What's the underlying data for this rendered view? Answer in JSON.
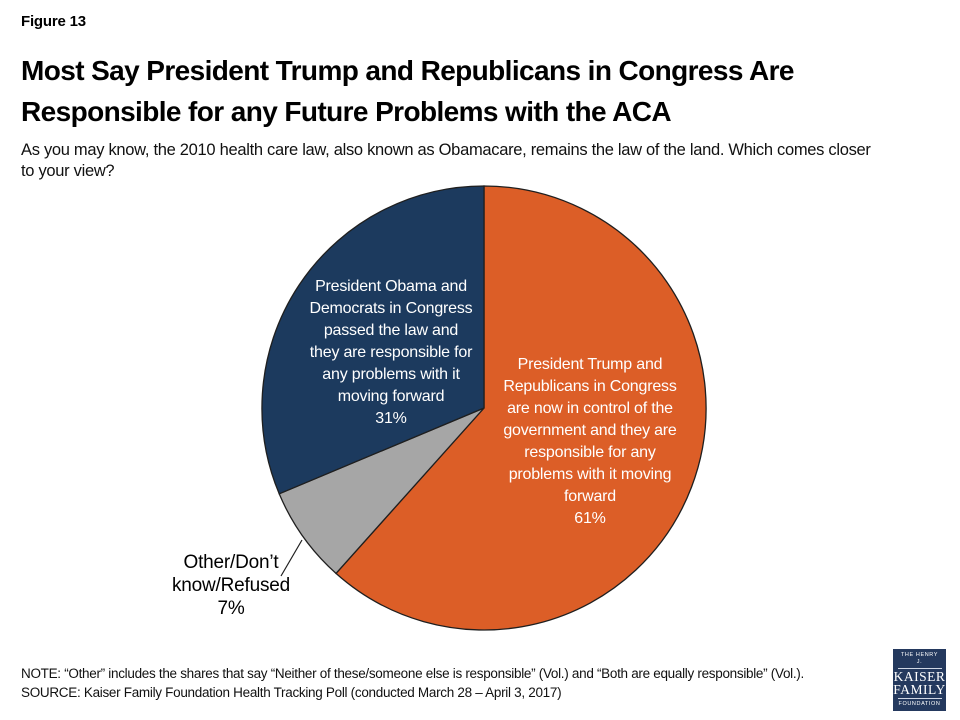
{
  "figure_label": "Figure 13",
  "title_lines": [
    "Most Say President Trump and Republicans in Congress Are",
    "Responsible for any Future Problems with the ACA"
  ],
  "subtitle_lines": [
    "As you may know, the 2010 health care law, also known as Obamacare, remains the law of the land. Which comes closer",
    "to your view?"
  ],
  "chart_data": {
    "type": "pie",
    "title": "Most Say President Trump and Republicans in Congress Are Responsible for any Future Problems with the ACA",
    "start_angle_deg": 0,
    "direction": "clockwise",
    "legend": "none",
    "outline_color": "#1f1f1f",
    "slices": [
      {
        "name": "trump-republicans",
        "value": 61,
        "color": "#DC5E27",
        "label_position": "inside",
        "label_color": "#FFFFFF",
        "label_lines": [
          "President Trump and",
          "Republicans in Congress",
          "are now in control of the",
          "government and they are",
          "responsible for any",
          "problems with it moving",
          "forward",
          "61%"
        ]
      },
      {
        "name": "other-dk-refused",
        "value": 7,
        "color": "#A6A6A6",
        "label_position": "outside",
        "label_color": "#000000",
        "label_lines": [
          "Other/Don’t",
          "know/Refused",
          "7%"
        ]
      },
      {
        "name": "obama-democrats",
        "value": 31,
        "color": "#1C3A5E",
        "label_position": "inside",
        "label_color": "#FFFFFF",
        "label_lines": [
          "President Obama and",
          "Democrats in Congress",
          "passed the law and",
          "they are responsible for",
          "any problems with it",
          "moving forward",
          "31%"
        ]
      }
    ]
  },
  "note": "NOTE: “Other” includes the shares that say “Neither of these/someone else is responsible” (Vol.) and “Both are equally responsible” (Vol.).",
  "source": "SOURCE: Kaiser Family Foundation Health Tracking Poll (conducted March 28 – April 3, 2017)",
  "logo": {
    "line1": "THE HENRY J.",
    "line2": "KAISER",
    "line3": "FAMILY",
    "line4": "FOUNDATION",
    "bg_color": "#24395E"
  }
}
